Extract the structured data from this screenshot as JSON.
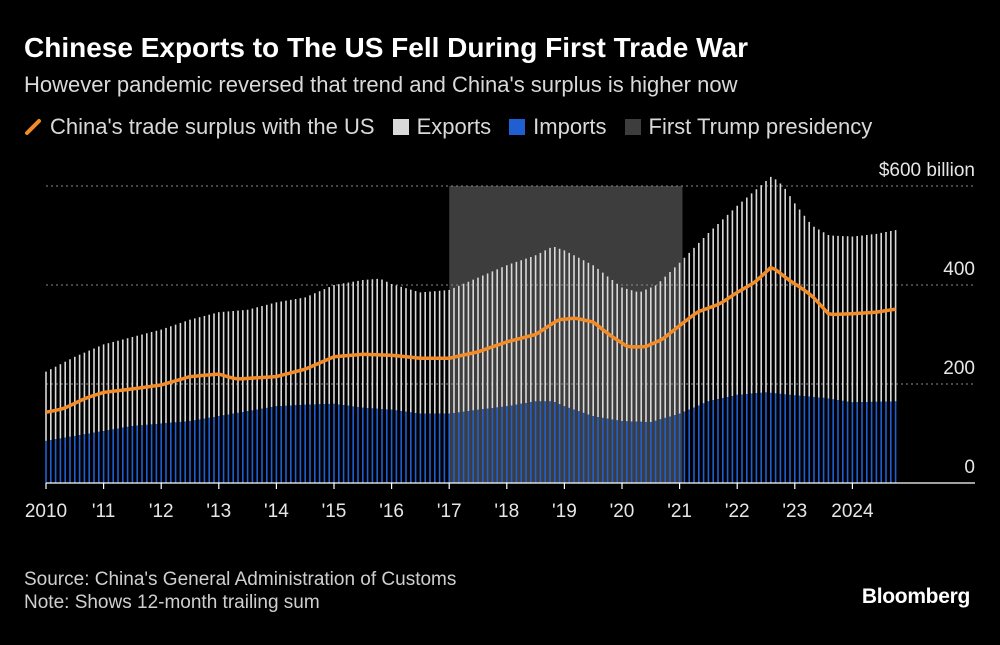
{
  "header": {
    "title": "Chinese Exports to The US Fell During First Trade War",
    "subtitle": "However pandemic reversed that trend and China's surplus is higher now"
  },
  "legend": {
    "surplus": "China's trade surplus with the US",
    "exports": "Exports",
    "imports": "Imports",
    "presidency": "First Trump presidency"
  },
  "footer": {
    "source": "Source: China's General Administration of Customs",
    "note": "Note: Shows 12-month trailing sum"
  },
  "brand": {
    "name": "Bloomberg"
  },
  "colors": {
    "background": "#000000",
    "surplus": "#f28c28",
    "exports": "#d9d9d9",
    "imports": "#1f5fd1",
    "presidency": "#3d3d3d",
    "grid": "#8a8a8a"
  },
  "chart_data": {
    "type": "bar",
    "title": "Chinese Exports to The US Fell During First Trade War",
    "xlabel": "",
    "ylabel": "$ billion",
    "ylim": [
      0,
      600
    ],
    "x_range": [
      2010.0,
      2025.0
    ],
    "x_ticks": [
      {
        "x": 2010,
        "label": "2010"
      },
      {
        "x": 2011,
        "label": "'11"
      },
      {
        "x": 2012,
        "label": "'12"
      },
      {
        "x": 2013,
        "label": "'13"
      },
      {
        "x": 2014,
        "label": "'14"
      },
      {
        "x": 2015,
        "label": "'15"
      },
      {
        "x": 2016,
        "label": "'16"
      },
      {
        "x": 2017,
        "label": "'17"
      },
      {
        "x": 2018,
        "label": "'18"
      },
      {
        "x": 2019,
        "label": "'19"
      },
      {
        "x": 2020,
        "label": "'20"
      },
      {
        "x": 2021,
        "label": "'21"
      },
      {
        "x": 2022,
        "label": "'22"
      },
      {
        "x": 2023,
        "label": "'23"
      },
      {
        "x": 2024,
        "label": "2024"
      }
    ],
    "y_ticks": [
      {
        "value": 0,
        "label": "0"
      },
      {
        "value": 200,
        "label": "200"
      },
      {
        "value": 400,
        "label": "400"
      },
      {
        "value": 600,
        "label": "$600 billion"
      }
    ],
    "shaded_period": {
      "start": 2017.0,
      "end": 2021.05,
      "label": "First Trump presidency"
    },
    "series": [
      {
        "name": "Exports",
        "kind": "bars",
        "points": [
          [
            2010.0,
            225
          ],
          [
            2010.5,
            255
          ],
          [
            2011.0,
            280
          ],
          [
            2011.5,
            295
          ],
          [
            2012.0,
            310
          ],
          [
            2012.5,
            330
          ],
          [
            2013.0,
            345
          ],
          [
            2013.5,
            350
          ],
          [
            2014.0,
            365
          ],
          [
            2014.5,
            375
          ],
          [
            2015.0,
            400
          ],
          [
            2015.5,
            410
          ],
          [
            2015.8,
            413
          ],
          [
            2016.0,
            402
          ],
          [
            2016.5,
            385
          ],
          [
            2017.0,
            390
          ],
          [
            2017.5,
            415
          ],
          [
            2018.0,
            440
          ],
          [
            2018.5,
            460
          ],
          [
            2018.8,
            478
          ],
          [
            2019.0,
            470
          ],
          [
            2019.5,
            440
          ],
          [
            2020.0,
            395
          ],
          [
            2020.3,
            385
          ],
          [
            2020.6,
            400
          ],
          [
            2021.0,
            445
          ],
          [
            2021.5,
            505
          ],
          [
            2022.0,
            560
          ],
          [
            2022.4,
            600
          ],
          [
            2022.6,
            620
          ],
          [
            2022.8,
            600
          ],
          [
            2023.0,
            565
          ],
          [
            2023.3,
            520
          ],
          [
            2023.6,
            500
          ],
          [
            2024.0,
            498
          ],
          [
            2024.4,
            503
          ],
          [
            2024.8,
            512
          ]
        ]
      },
      {
        "name": "Imports",
        "kind": "bars",
        "points": [
          [
            2010.0,
            85
          ],
          [
            2010.5,
            95
          ],
          [
            2011.0,
            105
          ],
          [
            2011.5,
            115
          ],
          [
            2012.0,
            120
          ],
          [
            2012.5,
            125
          ],
          [
            2013.0,
            135
          ],
          [
            2013.5,
            145
          ],
          [
            2014.0,
            155
          ],
          [
            2014.5,
            158
          ],
          [
            2015.0,
            160
          ],
          [
            2015.5,
            152
          ],
          [
            2016.0,
            148
          ],
          [
            2016.5,
            140
          ],
          [
            2017.0,
            140
          ],
          [
            2017.5,
            148
          ],
          [
            2018.0,
            155
          ],
          [
            2018.5,
            165
          ],
          [
            2018.8,
            165
          ],
          [
            2019.0,
            155
          ],
          [
            2019.5,
            135
          ],
          [
            2020.0,
            125
          ],
          [
            2020.5,
            123
          ],
          [
            2021.0,
            140
          ],
          [
            2021.5,
            165
          ],
          [
            2022.0,
            178
          ],
          [
            2022.5,
            183
          ],
          [
            2023.0,
            177
          ],
          [
            2023.5,
            172
          ],
          [
            2024.0,
            163
          ],
          [
            2024.8,
            165
          ]
        ]
      },
      {
        "name": "China's trade surplus with the US",
        "kind": "line",
        "points": [
          [
            2010.0,
            143
          ],
          [
            2010.3,
            150
          ],
          [
            2010.7,
            172
          ],
          [
            2011.0,
            183
          ],
          [
            2011.5,
            190
          ],
          [
            2012.0,
            198
          ],
          [
            2012.5,
            215
          ],
          [
            2013.0,
            220
          ],
          [
            2013.3,
            210
          ],
          [
            2013.6,
            212
          ],
          [
            2014.0,
            215
          ],
          [
            2014.5,
            230
          ],
          [
            2015.0,
            255
          ],
          [
            2015.5,
            260
          ],
          [
            2016.0,
            258
          ],
          [
            2016.5,
            252
          ],
          [
            2017.0,
            252
          ],
          [
            2017.5,
            265
          ],
          [
            2018.0,
            285
          ],
          [
            2018.5,
            300
          ],
          [
            2018.9,
            330
          ],
          [
            2019.2,
            333
          ],
          [
            2019.5,
            325
          ],
          [
            2019.8,
            298
          ],
          [
            2020.1,
            275
          ],
          [
            2020.4,
            275
          ],
          [
            2020.7,
            290
          ],
          [
            2021.0,
            318
          ],
          [
            2021.3,
            345
          ],
          [
            2021.7,
            362
          ],
          [
            2022.0,
            385
          ],
          [
            2022.3,
            405
          ],
          [
            2022.6,
            437
          ],
          [
            2022.9,
            410
          ],
          [
            2023.1,
            395
          ],
          [
            2023.3,
            378
          ],
          [
            2023.6,
            340
          ],
          [
            2024.0,
            342
          ],
          [
            2024.4,
            345
          ],
          [
            2024.8,
            352
          ]
        ]
      }
    ]
  }
}
